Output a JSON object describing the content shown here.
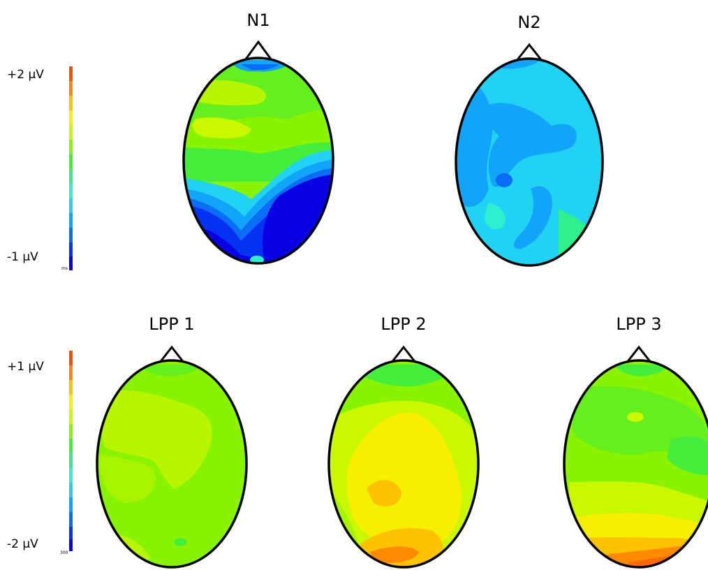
{
  "panels_top": {
    "scale": {
      "max_label": "+2 µV",
      "min_label": "-1 µV",
      "corner_label": "ms"
    },
    "maps": [
      {
        "title": "N1"
      },
      {
        "title": "N2"
      }
    ]
  },
  "panels_bottom": {
    "scale": {
      "max_label": "+1 µV",
      "min_label": "-2 µV",
      "corner_label": "300"
    },
    "maps": [
      {
        "title": "LPP 1"
      },
      {
        "title": "LPP 2"
      },
      {
        "title": "LPP 3"
      }
    ]
  },
  "colormap": [
    "#0a00e6",
    "#0532f0",
    "#0b6cf5",
    "#12a4f8",
    "#22d2f4",
    "#2ef0cf",
    "#2fee8e",
    "#45ee3c",
    "#8af400",
    "#c9f800",
    "#f6f000",
    "#ffc200",
    "#ff8a00",
    "#ff4d00"
  ]
}
